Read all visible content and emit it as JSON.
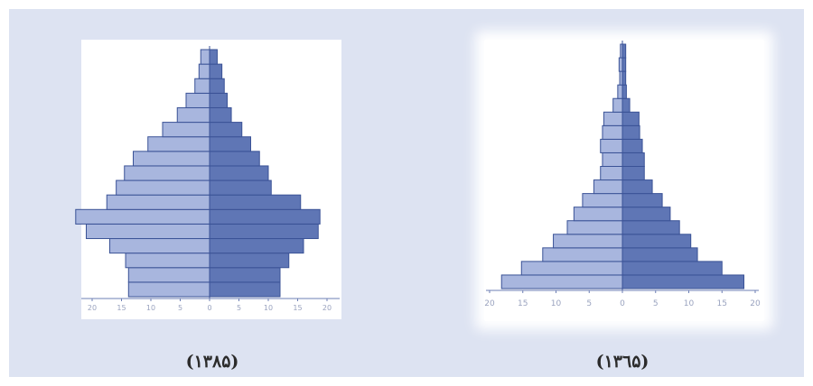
{
  "colors": {
    "background": "#dde3f2",
    "left_bar_fill": "#a8b6de",
    "right_bar_fill": "#5f76b5",
    "bar_stroke": "#3a5296",
    "axis": "#6d7fb4",
    "tick_label": "#9aa3bf"
  },
  "chart_data": [
    {
      "type": "bar",
      "orientation": "horizontal-pyramid",
      "caption": "(۱۳۸۵)",
      "xlim": [
        -20,
        20
      ],
      "xticks": [
        -20,
        -15,
        -10,
        -5,
        0,
        5,
        10,
        15,
        20
      ],
      "tick_labels": [
        "20",
        "15",
        "10",
        "5",
        "0",
        "5",
        "10",
        "15",
        "20"
      ],
      "series": [
        {
          "side": "left",
          "values": [
            13.8,
            13.8,
            14.3,
            17.0,
            21.0,
            22.8,
            17.5,
            15.9,
            14.5,
            13.0,
            10.5,
            8.0,
            5.5,
            4.0,
            2.5,
            1.8,
            1.5
          ]
        },
        {
          "side": "right",
          "values": [
            12.0,
            12.0,
            13.5,
            16.0,
            18.5,
            18.8,
            15.5,
            10.5,
            10.0,
            8.5,
            7.0,
            5.5,
            3.7,
            3.0,
            2.5,
            2.1,
            1.3
          ]
        }
      ]
    },
    {
      "type": "bar",
      "orientation": "horizontal-pyramid",
      "caption": "(۱۳٦۵)",
      "xlim": [
        -20,
        20
      ],
      "xticks": [
        -20,
        -15,
        -10,
        -5,
        0,
        5,
        10,
        15,
        20
      ],
      "tick_labels": [
        "20",
        "15",
        "10",
        "5",
        "0",
        "5",
        "10",
        "15",
        "20"
      ],
      "series": [
        {
          "side": "left",
          "values": [
            18.2,
            15.2,
            12.0,
            10.4,
            8.3,
            7.3,
            6.0,
            4.3,
            3.3,
            3.0,
            3.3,
            3.0,
            2.8,
            1.4,
            0.7,
            0.4,
            0.5,
            0.3
          ]
        },
        {
          "side": "right",
          "values": [
            18.3,
            15.0,
            11.3,
            10.3,
            8.6,
            7.2,
            6.0,
            4.5,
            3.3,
            3.3,
            3.0,
            2.6,
            2.5,
            1.1,
            0.6,
            0.5,
            0.5,
            0.5
          ]
        }
      ]
    }
  ]
}
